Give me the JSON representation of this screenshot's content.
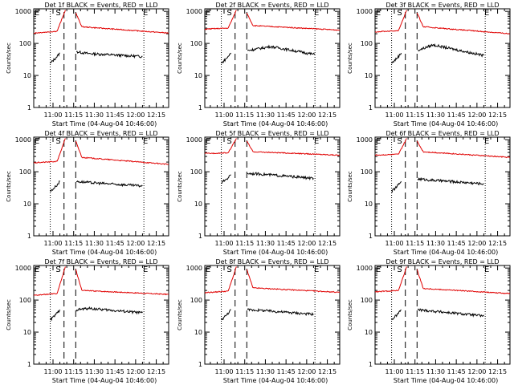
{
  "colors": {
    "events": "#000000",
    "lld": "#e00000",
    "axis": "#000000",
    "background": "#ffffff"
  },
  "common": {
    "ylabel": "Counts/sec",
    "xlabel": "Start Time (04-Aug-04 10:46:00)",
    "x_tick_labels": [
      "11:00",
      "11:15",
      "11:30",
      "11:45",
      "12:00",
      "12:15"
    ],
    "x_tick_minutes": [
      14,
      29,
      44,
      59,
      74,
      89
    ],
    "y_tick_labels": [
      "1",
      "10",
      "100",
      "1000"
    ],
    "y_tick_values": [
      1,
      10,
      100,
      1000
    ],
    "marker_start": "S",
    "marker_end": "E"
  },
  "chart_data": [
    {
      "title": "Det 1f BLACK = Events, RED = LLD",
      "type": "line",
      "xunit": "minutes after 10:46:00",
      "ylim": [
        1,
        1200
      ],
      "xlim": [
        0,
        98
      ],
      "yscale": "log",
      "start_line_minute": 19,
      "end_line_minute": 80,
      "gap": [
        24.5,
        30.5
      ],
      "dash_x": [
        22,
        30.5
      ],
      "dot_x": [
        12,
        80
      ],
      "series": [
        {
          "name": "Events",
          "color": "#000000",
          "segments": [
            {
              "x0": 12,
              "x1": 16,
              "y0": 24,
              "y1": 35
            },
            {
              "x0": 16,
              "x1": 19,
              "y0": 35,
              "y1": 50
            },
            {
              "x0": 31,
              "x1": 40,
              "y0": 55,
              "y1": 48
            },
            {
              "x0": 40,
              "x1": 79,
              "y0": 48,
              "y1": 39
            }
          ]
        },
        {
          "name": "LLD",
          "color": "#e00000",
          "segments": [
            {
              "x0": 0,
              "x1": 17,
              "y0": 210,
              "y1": 240
            },
            {
              "x0": 17,
              "x1": 23,
              "y0": 240,
              "y1": 1100
            },
            {
              "x0": 30.5,
              "x1": 35,
              "y0": 900,
              "y1": 330
            },
            {
              "x0": 35,
              "x1": 98,
              "y0": 330,
              "y1": 210
            }
          ]
        }
      ]
    },
    {
      "title": "Det 2f BLACK = Events, RED = LLD",
      "type": "line",
      "xunit": "minutes after 10:46:00",
      "ylim": [
        1,
        1200
      ],
      "xlim": [
        0,
        98
      ],
      "yscale": "log",
      "start_line_minute": 19,
      "end_line_minute": 80,
      "gap": [
        24.5,
        30.5
      ],
      "dash_x": [
        22,
        30.5
      ],
      "dot_x": [
        12,
        80
      ],
      "series": [
        {
          "name": "Events",
          "color": "#000000",
          "segments": [
            {
              "x0": 12,
              "x1": 16,
              "y0": 24,
              "y1": 35
            },
            {
              "x0": 16,
              "x1": 19,
              "y0": 35,
              "y1": 50
            },
            {
              "x0": 31,
              "x1": 48,
              "y0": 60,
              "y1": 80
            },
            {
              "x0": 48,
              "x1": 80,
              "y0": 80,
              "y1": 45
            }
          ]
        },
        {
          "name": "LLD",
          "color": "#e00000",
          "segments": [
            {
              "x0": 0,
              "x1": 17,
              "y0": 280,
              "y1": 300
            },
            {
              "x0": 17,
              "x1": 23,
              "y0": 300,
              "y1": 1100
            },
            {
              "x0": 30.5,
              "x1": 35,
              "y0": 900,
              "y1": 360
            },
            {
              "x0": 35,
              "x1": 98,
              "y0": 360,
              "y1": 260
            }
          ]
        }
      ]
    },
    {
      "title": "Det 3f BLACK = Events, RED = LLD",
      "type": "line",
      "xunit": "minutes after 10:46:00",
      "ylim": [
        1,
        1200
      ],
      "xlim": [
        0,
        98
      ],
      "yscale": "log",
      "start_line_minute": 19,
      "end_line_minute": 80,
      "gap": [
        24.5,
        30.5
      ],
      "dash_x": [
        22,
        30.5
      ],
      "dot_x": [
        12,
        80
      ],
      "series": [
        {
          "name": "Events",
          "color": "#000000",
          "segments": [
            {
              "x0": 12,
              "x1": 16,
              "y0": 24,
              "y1": 35
            },
            {
              "x0": 16,
              "x1": 19,
              "y0": 35,
              "y1": 50
            },
            {
              "x0": 31,
              "x1": 42,
              "y0": 60,
              "y1": 90
            },
            {
              "x0": 42,
              "x1": 79,
              "y0": 90,
              "y1": 42
            }
          ]
        },
        {
          "name": "LLD",
          "color": "#e00000",
          "segments": [
            {
              "x0": 0,
              "x1": 17,
              "y0": 230,
              "y1": 250
            },
            {
              "x0": 17,
              "x1": 23,
              "y0": 250,
              "y1": 1100
            },
            {
              "x0": 30.5,
              "x1": 35,
              "y0": 900,
              "y1": 330
            },
            {
              "x0": 35,
              "x1": 98,
              "y0": 330,
              "y1": 200
            }
          ]
        }
      ]
    },
    {
      "title": "Det 4f BLACK = Events, RED = LLD",
      "type": "line",
      "xunit": "minutes after 10:46:00",
      "ylim": [
        1,
        1200
      ],
      "xlim": [
        0,
        98
      ],
      "yscale": "log",
      "start_line_minute": 19,
      "end_line_minute": 80,
      "gap": [
        24.5,
        30.5
      ],
      "dash_x": [
        22,
        30.5
      ],
      "dot_x": [
        12,
        80
      ],
      "series": [
        {
          "name": "Events",
          "color": "#000000",
          "segments": [
            {
              "x0": 12,
              "x1": 16,
              "y0": 24,
              "y1": 35
            },
            {
              "x0": 16,
              "x1": 19,
              "y0": 35,
              "y1": 50
            },
            {
              "x0": 31,
              "x1": 40,
              "y0": 50,
              "y1": 46
            },
            {
              "x0": 40,
              "x1": 79,
              "y0": 46,
              "y1": 36
            }
          ]
        },
        {
          "name": "LLD",
          "color": "#e00000",
          "segments": [
            {
              "x0": 0,
              "x1": 17,
              "y0": 190,
              "y1": 210
            },
            {
              "x0": 17,
              "x1": 23,
              "y0": 210,
              "y1": 1100
            },
            {
              "x0": 30.5,
              "x1": 35,
              "y0": 900,
              "y1": 280
            },
            {
              "x0": 35,
              "x1": 98,
              "y0": 280,
              "y1": 170
            }
          ]
        }
      ]
    },
    {
      "title": "Det 5f BLACK = Events, RED = LLD",
      "type": "line",
      "xunit": "minutes after 10:46:00",
      "ylim": [
        1,
        1200
      ],
      "xlim": [
        0,
        98
      ],
      "yscale": "log",
      "start_line_minute": 19,
      "end_line_minute": 80,
      "gap": [
        24.5,
        30.5
      ],
      "dash_x": [
        22,
        30.5
      ],
      "dot_x": [
        12,
        80
      ],
      "series": [
        {
          "name": "Events",
          "color": "#000000",
          "segments": [
            {
              "x0": 12,
              "x1": 16,
              "y0": 45,
              "y1": 60
            },
            {
              "x0": 16,
              "x1": 19,
              "y0": 60,
              "y1": 80
            },
            {
              "x0": 31,
              "x1": 40,
              "y0": 90,
              "y1": 85
            },
            {
              "x0": 40,
              "x1": 79,
              "y0": 85,
              "y1": 62
            }
          ]
        },
        {
          "name": "LLD",
          "color": "#e00000",
          "segments": [
            {
              "x0": 0,
              "x1": 17,
              "y0": 370,
              "y1": 390
            },
            {
              "x0": 17,
              "x1": 23,
              "y0": 390,
              "y1": 1100
            },
            {
              "x0": 30.5,
              "x1": 35,
              "y0": 900,
              "y1": 420
            },
            {
              "x0": 35,
              "x1": 98,
              "y0": 420,
              "y1": 330
            }
          ]
        }
      ]
    },
    {
      "title": "Det 6f BLACK = Events, RED = LLD",
      "type": "line",
      "xunit": "minutes after 10:46:00",
      "ylim": [
        1,
        1200
      ],
      "xlim": [
        0,
        98
      ],
      "yscale": "log",
      "start_line_minute": 19,
      "end_line_minute": 80,
      "gap": [
        24.5,
        30.5
      ],
      "dash_x": [
        22,
        30.5
      ],
      "dot_x": [
        12,
        80
      ],
      "series": [
        {
          "name": "Events",
          "color": "#000000",
          "segments": [
            {
              "x0": 12,
              "x1": 16,
              "y0": 24,
              "y1": 35
            },
            {
              "x0": 16,
              "x1": 19,
              "y0": 35,
              "y1": 50
            },
            {
              "x0": 31,
              "x1": 40,
              "y0": 60,
              "y1": 55
            },
            {
              "x0": 40,
              "x1": 79,
              "y0": 55,
              "y1": 42
            }
          ]
        },
        {
          "name": "LLD",
          "color": "#e00000",
          "segments": [
            {
              "x0": 0,
              "x1": 17,
              "y0": 330,
              "y1": 350
            },
            {
              "x0": 17,
              "x1": 23,
              "y0": 350,
              "y1": 1100
            },
            {
              "x0": 30.5,
              "x1": 35,
              "y0": 900,
              "y1": 420
            },
            {
              "x0": 35,
              "x1": 98,
              "y0": 420,
              "y1": 280
            }
          ]
        }
      ]
    },
    {
      "title": "Det 7f BLACK = Events, RED = LLD",
      "type": "line",
      "xunit": "minutes after 10:46:00",
      "ylim": [
        1,
        1200
      ],
      "xlim": [
        0,
        98
      ],
      "yscale": "log",
      "start_line_minute": 19,
      "end_line_minute": 80,
      "gap": [
        24.5,
        30.5
      ],
      "dash_x": [
        22,
        30.5
      ],
      "dot_x": [
        12,
        80
      ],
      "series": [
        {
          "name": "Events",
          "color": "#000000",
          "segments": [
            {
              "x0": 12,
              "x1": 16,
              "y0": 24,
              "y1": 35
            },
            {
              "x0": 16,
              "x1": 19,
              "y0": 35,
              "y1": 50
            },
            {
              "x0": 31,
              "x1": 40,
              "y0": 50,
              "y1": 55
            },
            {
              "x0": 40,
              "x1": 79,
              "y0": 55,
              "y1": 40
            }
          ]
        },
        {
          "name": "LLD",
          "color": "#e00000",
          "segments": [
            {
              "x0": 0,
              "x1": 17,
              "y0": 140,
              "y1": 160
            },
            {
              "x0": 17,
              "x1": 23,
              "y0": 160,
              "y1": 1100
            },
            {
              "x0": 30.5,
              "x1": 35,
              "y0": 900,
              "y1": 200
            },
            {
              "x0": 35,
              "x1": 98,
              "y0": 200,
              "y1": 150
            }
          ]
        }
      ]
    },
    {
      "title": "Det 8f BLACK = Events, RED = LLD",
      "type": "line",
      "xunit": "minutes after 10:46:00",
      "ylim": [
        1,
        1200
      ],
      "xlim": [
        0,
        98
      ],
      "yscale": "log",
      "start_line_minute": 19,
      "end_line_minute": 80,
      "gap": [
        24.5,
        30.5
      ],
      "dash_x": [
        22,
        30.5
      ],
      "dot_x": [
        12,
        80
      ],
      "series": [
        {
          "name": "Events",
          "color": "#000000",
          "segments": [
            {
              "x0": 12,
              "x1": 16,
              "y0": 24,
              "y1": 35
            },
            {
              "x0": 16,
              "x1": 19,
              "y0": 35,
              "y1": 50
            },
            {
              "x0": 31,
              "x1": 40,
              "y0": 50,
              "y1": 48
            },
            {
              "x0": 40,
              "x1": 79,
              "y0": 48,
              "y1": 36
            }
          ]
        },
        {
          "name": "LLD",
          "color": "#e00000",
          "segments": [
            {
              "x0": 0,
              "x1": 17,
              "y0": 170,
              "y1": 190
            },
            {
              "x0": 17,
              "x1": 23,
              "y0": 190,
              "y1": 1100
            },
            {
              "x0": 30.5,
              "x1": 35,
              "y0": 900,
              "y1": 240
            },
            {
              "x0": 35,
              "x1": 98,
              "y0": 240,
              "y1": 175
            }
          ]
        }
      ]
    },
    {
      "title": "Det 9f BLACK = Events, RED = LLD",
      "type": "line",
      "xunit": "minutes after 10:46:00",
      "ylim": [
        1,
        1200
      ],
      "xlim": [
        0,
        98
      ],
      "yscale": "log",
      "start_line_minute": 19,
      "end_line_minute": 80,
      "gap": [
        24.5,
        30.5
      ],
      "dash_x": [
        22,
        30.5
      ],
      "dot_x": [
        12,
        80
      ],
      "series": [
        {
          "name": "Events",
          "color": "#000000",
          "segments": [
            {
              "x0": 12,
              "x1": 16,
              "y0": 24,
              "y1": 35
            },
            {
              "x0": 16,
              "x1": 19,
              "y0": 35,
              "y1": 50
            },
            {
              "x0": 31,
              "x1": 40,
              "y0": 50,
              "y1": 46
            },
            {
              "x0": 40,
              "x1": 79,
              "y0": 46,
              "y1": 32
            }
          ]
        },
        {
          "name": "LLD",
          "color": "#e00000",
          "segments": [
            {
              "x0": 0,
              "x1": 17,
              "y0": 180,
              "y1": 200
            },
            {
              "x0": 17,
              "x1": 23,
              "y0": 200,
              "y1": 1100
            },
            {
              "x0": 30.5,
              "x1": 35,
              "y0": 900,
              "y1": 230
            },
            {
              "x0": 35,
              "x1": 98,
              "y0": 230,
              "y1": 160
            }
          ]
        }
      ]
    }
  ]
}
